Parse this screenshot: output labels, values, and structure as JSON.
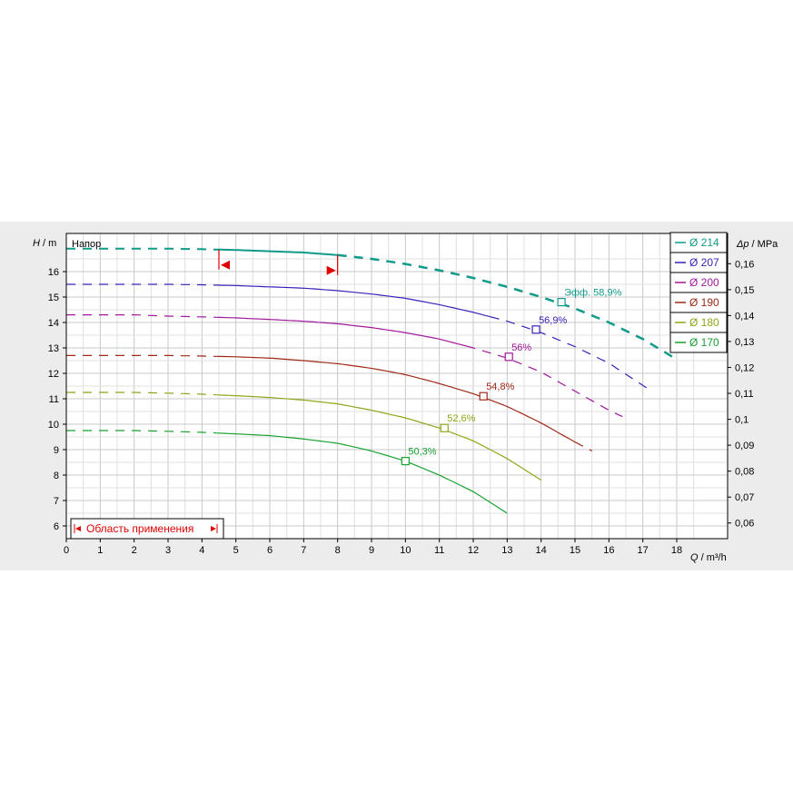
{
  "chart_data": {
    "type": "line",
    "title": "Напор",
    "xlabel_symbol": "Q",
    "xlabel_unit": " / m³/h",
    "ylabel_symbol": "H",
    "ylabel_unit": " / m",
    "y2label_symbol": "Δp",
    "y2label_unit": " / MPa",
    "xlim": [
      0,
      19.5
    ],
    "ylim": [
      5.5,
      17.5
    ],
    "x_ticks": [
      "0",
      "1",
      "2",
      "3",
      "4",
      "5",
      "6",
      "7",
      "8",
      "9",
      "10",
      "11",
      "12",
      "13",
      "14",
      "15",
      "16",
      "17",
      "18"
    ],
    "y_ticks": [
      "6",
      "7",
      "8",
      "9",
      "10",
      "11",
      "12",
      "13",
      "14",
      "15",
      "16"
    ],
    "y2_ticks": [
      "0,06",
      "0,07",
      "0,08",
      "0,09",
      "0,1",
      "0,11",
      "0,12",
      "0,13",
      "0,14",
      "0,15",
      "0,16"
    ],
    "grid": true,
    "legend_position": "top-right",
    "series": [
      {
        "name": "Ø 214",
        "color": "#0f9a8a",
        "x": [
          0,
          1,
          2,
          3,
          4,
          5,
          6,
          7,
          8,
          9,
          10,
          11,
          12,
          13,
          14,
          15,
          16,
          17,
          18
        ],
        "y": [
          16.9,
          16.9,
          16.9,
          16.9,
          16.88,
          16.85,
          16.8,
          16.75,
          16.65,
          16.5,
          16.3,
          16.05,
          15.75,
          15.4,
          15.0,
          14.55,
          14.0,
          13.35,
          12.55
        ],
        "solid_x": [
          4.5,
          8.0
        ],
        "efficiency": {
          "x": 14.6,
          "y": 14.8,
          "label": "Эфф.   58,9%"
        }
      },
      {
        "name": "Ø 207",
        "color": "#3b20b8",
        "x": [
          0,
          1,
          2,
          3,
          4,
          5,
          6,
          7,
          8,
          9,
          10,
          11,
          12,
          13,
          14,
          15,
          16,
          17.2
        ],
        "y": [
          15.5,
          15.5,
          15.5,
          15.5,
          15.48,
          15.45,
          15.4,
          15.35,
          15.25,
          15.12,
          14.95,
          14.7,
          14.4,
          14.05,
          13.6,
          13.05,
          12.4,
          11.35
        ],
        "solid_x": [
          4.5,
          12.5
        ],
        "efficiency": {
          "x": 13.85,
          "y": 13.72,
          "label": "56,9%"
        }
      },
      {
        "name": "Ø 200",
        "color": "#a0189c",
        "x": [
          0,
          1,
          2,
          3,
          4,
          5,
          6,
          7,
          8,
          9,
          10,
          11,
          12,
          13,
          14,
          15,
          16,
          16.4
        ],
        "y": [
          14.3,
          14.3,
          14.3,
          14.25,
          14.22,
          14.18,
          14.12,
          14.05,
          13.95,
          13.8,
          13.6,
          13.35,
          13.0,
          12.6,
          12.05,
          11.3,
          10.55,
          10.3
        ],
        "solid_x": [
          4.5,
          11.8
        ],
        "efficiency": {
          "x": 13.05,
          "y": 12.65,
          "label": "56%"
        }
      },
      {
        "name": "Ø 190",
        "color": "#a02818",
        "x": [
          0,
          1,
          2,
          3,
          4,
          5,
          6,
          7,
          8,
          9,
          10,
          11,
          12,
          13,
          14,
          15,
          15.5
        ],
        "y": [
          12.7,
          12.7,
          12.7,
          12.7,
          12.68,
          12.65,
          12.6,
          12.5,
          12.38,
          12.2,
          11.95,
          11.6,
          11.2,
          10.7,
          10.05,
          9.3,
          8.95
        ],
        "solid_x": [
          4.5,
          15.0
        ],
        "efficiency": {
          "x": 12.3,
          "y": 11.1,
          "label": "54,8%"
        }
      },
      {
        "name": "Ø 180",
        "color": "#8aa818",
        "x": [
          0,
          1,
          2,
          3,
          4,
          5,
          6,
          7,
          8,
          9,
          10,
          11,
          12,
          13,
          14
        ],
        "y": [
          11.25,
          11.25,
          11.25,
          11.22,
          11.18,
          11.12,
          11.05,
          10.95,
          10.8,
          10.55,
          10.25,
          9.85,
          9.35,
          8.65,
          7.8
        ],
        "solid_x": [
          4.5,
          14.0
        ],
        "efficiency": {
          "x": 11.15,
          "y": 9.85,
          "label": "52,6%"
        }
      },
      {
        "name": "Ø 170",
        "color": "#18a030",
        "x": [
          0,
          1,
          2,
          3,
          4,
          5,
          6,
          7,
          8,
          9,
          10,
          11,
          12,
          13
        ],
        "y": [
          9.75,
          9.75,
          9.75,
          9.72,
          9.68,
          9.62,
          9.55,
          9.42,
          9.25,
          8.95,
          8.55,
          8.0,
          7.35,
          6.5
        ],
        "solid_x": [
          4.5,
          13.0
        ],
        "efficiency": {
          "x": 10.0,
          "y": 8.55,
          "label": "50,3%"
        }
      }
    ],
    "application_region": {
      "label": "Область применения",
      "x_min": 4.5,
      "x_max": 8.0
    }
  }
}
